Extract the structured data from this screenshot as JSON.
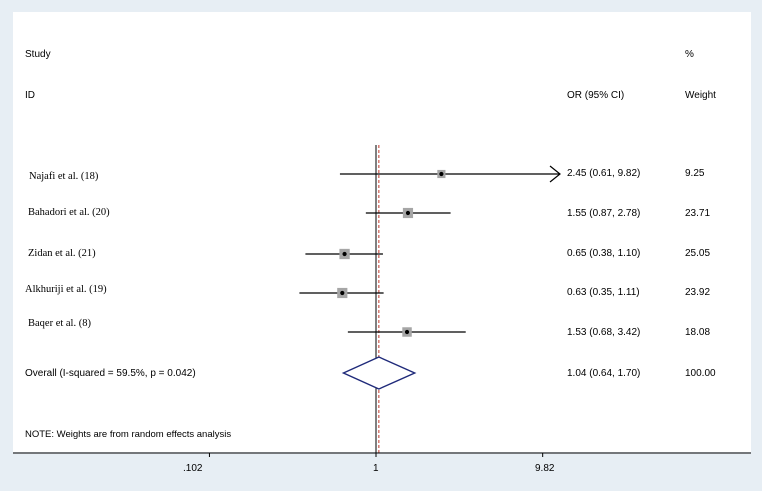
{
  "chart_data": {
    "type": "forest",
    "header": {
      "study_line1": "Study",
      "study_line2": "ID",
      "or_label": "OR (95% CI)",
      "weight_line1": "%",
      "weight_line2": "Weight"
    },
    "studies": [
      {
        "id": "Najafi et al. (18)",
        "or": 2.45,
        "lo": 0.61,
        "hi": 9.82,
        "or_text": "2.45 (0.61, 9.82)",
        "weight": "9.25",
        "w": 9.25,
        "arrow": true
      },
      {
        "id": "Bahadori et al. (20)",
        "or": 1.55,
        "lo": 0.87,
        "hi": 2.78,
        "or_text": "1.55 (0.87, 2.78)",
        "weight": "23.71",
        "w": 23.71,
        "arrow": false
      },
      {
        "id": "Zidan et al. (21)",
        "or": 0.65,
        "lo": 0.38,
        "hi": 1.1,
        "or_text": "0.65 (0.38, 1.10)",
        "weight": "25.05",
        "w": 25.05,
        "arrow": false
      },
      {
        "id": "Alkhuriji et al. (19)",
        "or": 0.63,
        "lo": 0.35,
        "hi": 1.11,
        "or_text": "0.63 (0.35, 1.11)",
        "weight": "23.92",
        "w": 23.92,
        "arrow": false
      },
      {
        "id": "Baqer et al. (8)",
        "or": 1.53,
        "lo": 0.68,
        "hi": 3.42,
        "or_text": "1.53 (0.68, 3.42)",
        "weight": "18.08",
        "w": 18.08,
        "arrow": false
      }
    ],
    "overall": {
      "label": "Overall  (I-squared = 59.5%, p = 0.042)",
      "or": 1.04,
      "lo": 0.64,
      "hi": 1.7,
      "or_text": "1.04 (0.64, 1.70)",
      "weight": "100.00"
    },
    "note": "NOTE: Weights are from random effects analysis",
    "x_axis": {
      "scale": "log",
      "ticks": [
        0.102,
        1,
        9.82
      ],
      "tick_labels": [
        ".102",
        "1",
        "9.82"
      ]
    },
    "reference_line": 1,
    "colors": {
      "line": "#000000",
      "box": "#a6a6a6",
      "diamond": "#1f2a7a",
      "overall_line": "#c0392b",
      "background": "#e7eef4"
    }
  }
}
